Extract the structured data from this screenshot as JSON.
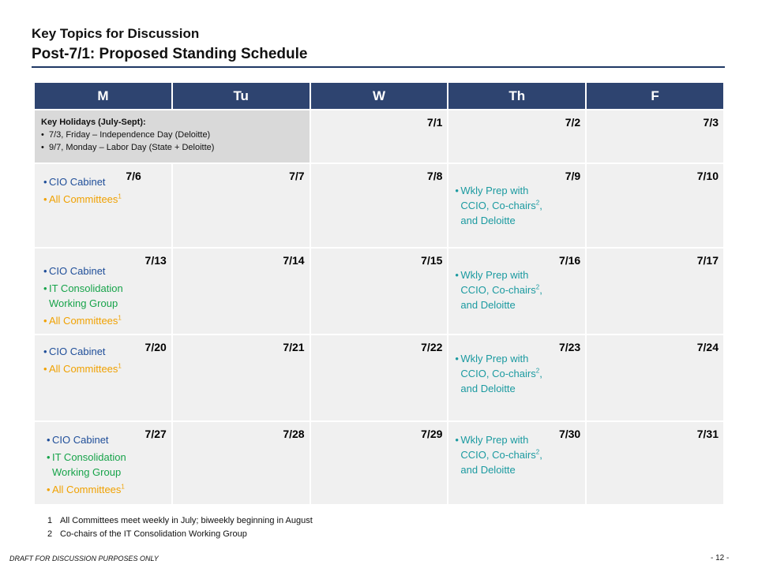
{
  "header": {
    "subtitle": "Key Topics for Discussion",
    "title": "Post-7/1:  Proposed Standing Schedule"
  },
  "days": [
    "M",
    "Tu",
    "W",
    "Th",
    "F"
  ],
  "holidays": {
    "title": "Key Holidays (July-Sept):",
    "items": [
      "7/3, Friday – Independence Day  (Deloitte)",
      "9/7, Monday – Labor Day (State + Deloitte)"
    ]
  },
  "row0": {
    "w": "7/1",
    "th": "7/2",
    "f": "7/3"
  },
  "weeks": [
    {
      "m": "7/6",
      "tu": "7/7",
      "w": "7/8",
      "th": "7/9",
      "f": "7/10",
      "m_items": [
        {
          "text": "CIO Cabinet",
          "sup": ""
        },
        {
          "text": "All Committees",
          "sup": "1"
        }
      ],
      "th_items": [
        {
          "line1": "Wkly Prep with",
          "line2": "CCIO, Co-chairs",
          "sup": "2",
          "line2_end": ",",
          "line3": "and Deloitte"
        }
      ]
    },
    {
      "m": "7/13",
      "tu": "7/14",
      "w": "7/15",
      "th": "7/16",
      "f": "7/17",
      "m_items": [
        {
          "text": "CIO Cabinet",
          "sup": ""
        },
        {
          "text": "IT Consolidation",
          "text2": "Working Group",
          "sup": ""
        },
        {
          "text": "All Committees",
          "sup": "1"
        }
      ],
      "th_items": [
        {
          "line1": "Wkly Prep with",
          "line2": "CCIO, Co-chairs",
          "sup": "2",
          "line2_end": ",",
          "line3": "and Deloitte"
        }
      ]
    },
    {
      "m": "7/20",
      "tu": "7/21",
      "w": "7/22",
      "th": "7/23",
      "f": "7/24",
      "m_items": [
        {
          "text": "CIO Cabinet",
          "sup": ""
        },
        {
          "text": "All Committees",
          "sup": "1"
        }
      ],
      "th_items": [
        {
          "line1": "Wkly Prep with",
          "line2": "CCIO, Co-chairs",
          "sup": "2",
          "line2_end": ",",
          "line3": "and Deloitte"
        }
      ]
    },
    {
      "m": "7/27",
      "tu": "7/28",
      "w": "7/29",
      "th": "7/30",
      "f": "7/31",
      "m_items": [
        {
          "text": "CIO Cabinet",
          "sup": ""
        },
        {
          "text": "IT Consolidation",
          "text2": "Working Group",
          "sup": ""
        },
        {
          "text": "All Committees",
          "sup": "1"
        }
      ],
      "th_items": [
        {
          "line1": "Wkly Prep with",
          "line2": "CCIO, Co-chairs",
          "sup": "2",
          "line2_end": ",",
          "line3": "and Deloitte"
        }
      ]
    }
  ],
  "footnotes": [
    {
      "num": "1",
      "text": "All Committees meet weekly in July; biweekly beginning in August"
    },
    {
      "num": "2",
      "text": "Co-chairs of the IT Consolidation Working Group"
    }
  ],
  "footer": {
    "draft": "DRAFT FOR DISCUSSION PURPOSES ONLY",
    "page": "- 12 -"
  },
  "colors": {
    "header_bar": "#2e4470",
    "cio_cabinet": "#1f4e99",
    "all_committees": "#f0a100",
    "it_consolidation": "#17a34a",
    "wkly_prep": "#1b9aa0"
  }
}
